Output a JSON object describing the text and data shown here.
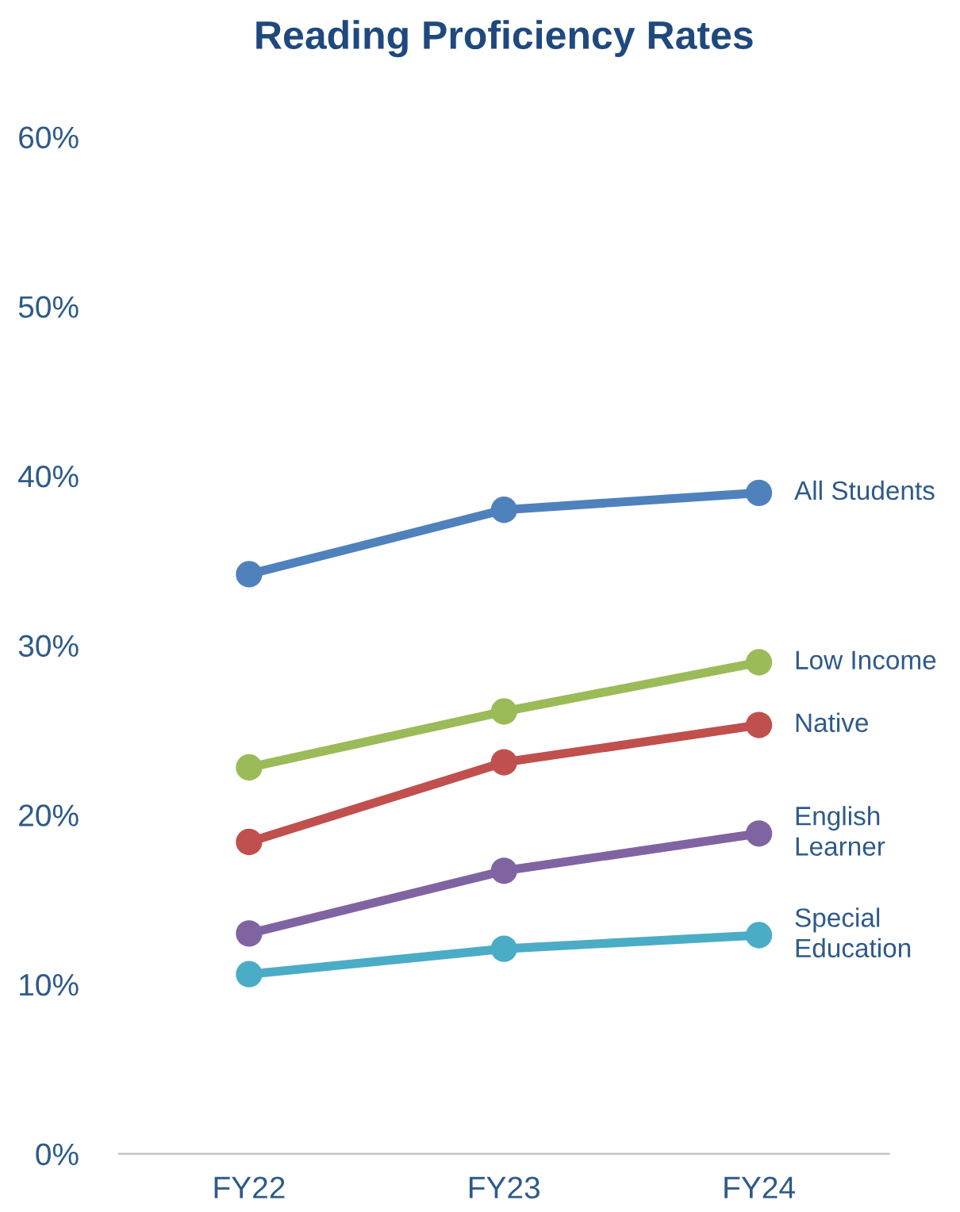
{
  "chart_data": {
    "type": "line",
    "title": "Reading Proficiency Rates",
    "categories": [
      "FY22",
      "FY23",
      "FY24"
    ],
    "series": [
      {
        "name": "All Students",
        "color": "#4f81bd",
        "values": [
          34.2,
          38.0,
          39.0
        ]
      },
      {
        "name": "Low Income",
        "color": "#9bbb59",
        "values": [
          22.8,
          26.1,
          29.0
        ]
      },
      {
        "name": "Native",
        "color": "#c0504d",
        "values": [
          18.4,
          23.1,
          25.3
        ]
      },
      {
        "name": "English\nLearner",
        "color": "#8064a2",
        "values": [
          13.0,
          16.7,
          18.9
        ]
      },
      {
        "name": "Special\nEducation",
        "color": "#4bacc6",
        "values": [
          10.6,
          12.1,
          12.9
        ]
      }
    ],
    "ylim": [
      0,
      60
    ],
    "yticks": [
      {
        "value": 0,
        "label": "0%"
      },
      {
        "value": 10,
        "label": "10%"
      },
      {
        "value": 20,
        "label": "20%"
      },
      {
        "value": 30,
        "label": "30%"
      },
      {
        "value": 40,
        "label": "40%"
      },
      {
        "value": 50,
        "label": "50%"
      },
      {
        "value": 60,
        "label": "60%"
      }
    ],
    "grid": false,
    "legend": false,
    "marker": "circle",
    "line_style": "solid"
  }
}
